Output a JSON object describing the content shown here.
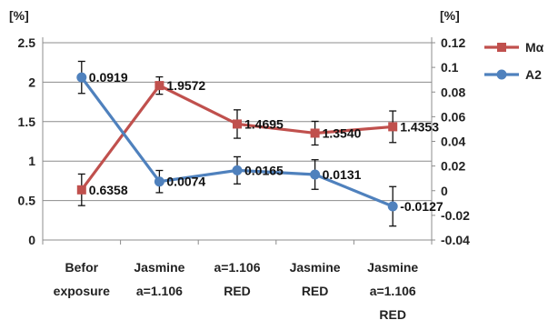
{
  "chart_data": {
    "type": "line",
    "categories": [
      [
        "Befor",
        "exposure"
      ],
      [
        "Jasmine",
        "a=1.106"
      ],
      [
        "a=1.106",
        "RED"
      ],
      [
        "Jasmine",
        "RED"
      ],
      [
        "Jasmine",
        "a=1.106",
        "RED"
      ]
    ],
    "left_axis": {
      "unit_label": "[%]",
      "range": [
        0,
        2.5
      ],
      "ticks": [
        0,
        0.5,
        1,
        1.5,
        2,
        2.5
      ],
      "tick_labels": [
        "0",
        "0.5",
        "1",
        "1.5",
        "2",
        "2.5"
      ]
    },
    "right_axis": {
      "unit_label": "[%]",
      "range": [
        -0.04,
        0.12
      ],
      "ticks": [
        -0.04,
        -0.02,
        0,
        0.02,
        0.04,
        0.06,
        0.08,
        0.1,
        0.12
      ],
      "tick_labels": [
        "-0.04",
        "-0.02",
        "0",
        "0.02",
        "0.04",
        "0.06",
        "0.08",
        "0.1",
        "0.12"
      ]
    },
    "grid": true,
    "legend": "right",
    "series": [
      {
        "name": "Mα",
        "axis": "left",
        "color": "#c0504d",
        "marker": "square",
        "values": [
          0.6358,
          1.9572,
          1.4695,
          1.354,
          1.4353
        ],
        "labels": [
          "0.6358",
          "1.9572",
          "1.4695",
          "1.3540",
          "1.4353"
        ],
        "errors": [
          0.2,
          0.11,
          0.18,
          0.15,
          0.2
        ]
      },
      {
        "name": "A2",
        "axis": "right",
        "color": "#4f81bd",
        "marker": "circle",
        "values": [
          0.0919,
          0.0074,
          0.0165,
          0.0131,
          -0.0127
        ],
        "labels": [
          "0.0919",
          "0.0074",
          "0.0165",
          "0.0131",
          "-0.0127"
        ],
        "errors": [
          0.013,
          0.009,
          0.011,
          0.012,
          0.016
        ]
      }
    ]
  }
}
